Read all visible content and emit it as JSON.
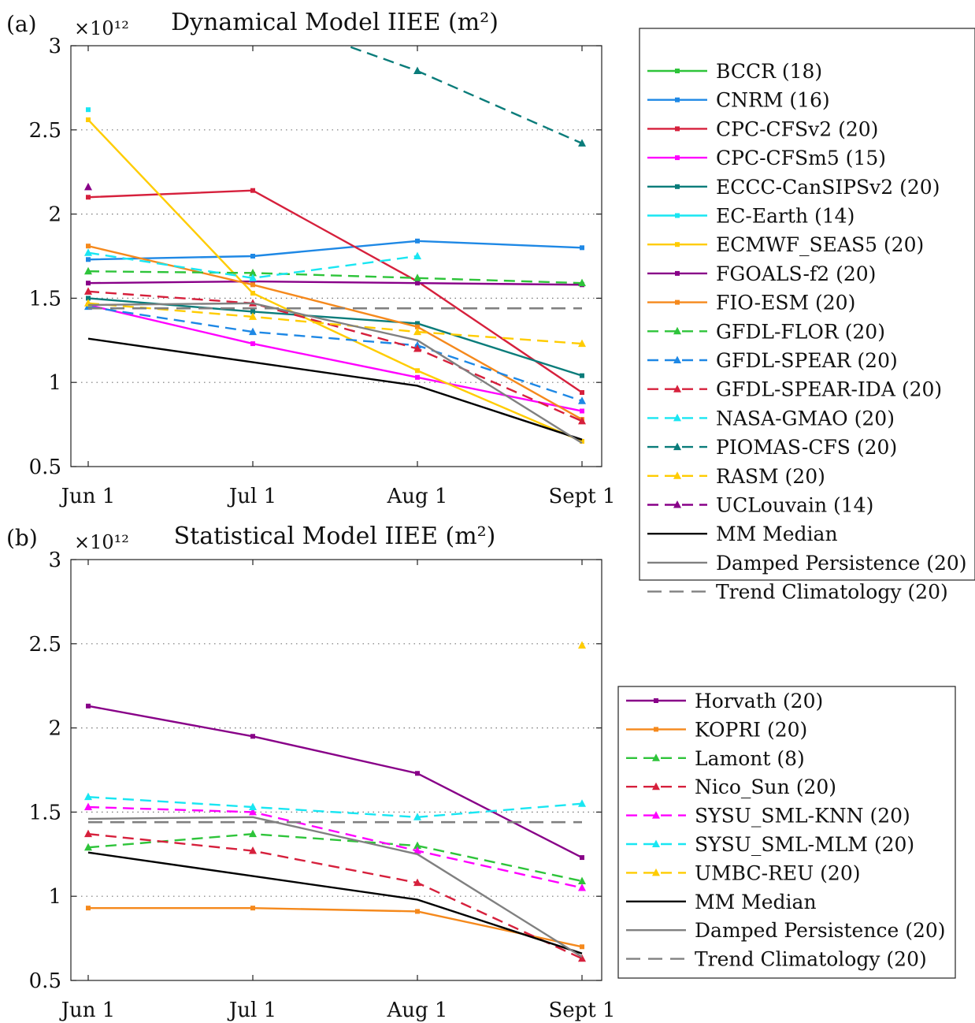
{
  "chart_data": [
    {
      "type": "line",
      "panel_label": "(a)",
      "title": "Dynamical Model IIEE (m²)",
      "exponent_label": "×10¹²",
      "x": [
        "Jun 1",
        "Jul 1",
        "Aug 1",
        "Sept 1"
      ],
      "ylim": [
        0.5,
        3.0
      ],
      "yticks": [
        "0.5",
        "1",
        "1.5",
        "2",
        "2.5",
        "3"
      ],
      "grid": "horizontal dotted",
      "legend_position": "right",
      "series": [
        {
          "name": "BCCR (18)",
          "values": [
            null,
            null,
            null,
            null
          ],
          "color": "#2ec43a",
          "dash": "solid",
          "marker": "square"
        },
        {
          "name": "CNRM (16)",
          "values": [
            1.73,
            1.75,
            1.84,
            1.8
          ],
          "color": "#1e88e5",
          "dash": "solid",
          "marker": "square"
        },
        {
          "name": "CPC-CFSv2 (20)",
          "values": [
            2.1,
            2.14,
            1.6,
            0.94
          ],
          "color": "#d6203c",
          "dash": "solid",
          "marker": "square"
        },
        {
          "name": "CPC-CFSm5 (15)",
          "values": [
            1.46,
            1.23,
            1.03,
            0.83
          ],
          "color": "#ff00ff",
          "dash": "solid",
          "marker": "square"
        },
        {
          "name": "ECCC-CanSIPSv2 (20)",
          "values": [
            1.5,
            1.42,
            1.35,
            1.04
          ],
          "color": "#0a7c7a",
          "dash": "solid",
          "marker": "square"
        },
        {
          "name": "EC-Earth (14)",
          "values": [
            2.62,
            null,
            null,
            null
          ],
          "color": "#19e6f2",
          "dash": "solid",
          "marker": "square"
        },
        {
          "name": "ECMWF_SEAS5 (20)",
          "values": [
            2.56,
            1.53,
            1.07,
            0.65
          ],
          "color": "#ffcc00",
          "dash": "solid",
          "marker": "square"
        },
        {
          "name": "FGOALS-f2 (20)",
          "values": [
            1.59,
            1.6,
            1.59,
            1.58
          ],
          "color": "#880088",
          "dash": "solid",
          "marker": "square"
        },
        {
          "name": "FIO-ESM (20)",
          "values": [
            1.81,
            1.58,
            1.33,
            0.78
          ],
          "color": "#f5891c",
          "dash": "solid",
          "marker": "square"
        },
        {
          "name": "GFDL-FLOR (20)",
          "values": [
            1.66,
            1.65,
            1.62,
            1.59
          ],
          "color": "#2ec43a",
          "dash": "dashed",
          "marker": "triangle"
        },
        {
          "name": "GFDL-SPEAR (20)",
          "values": [
            1.45,
            1.3,
            1.22,
            0.89
          ],
          "color": "#1e88e5",
          "dash": "dashed",
          "marker": "triangle"
        },
        {
          "name": "GFDL-SPEAR-IDA (20)",
          "values": [
            1.54,
            1.47,
            1.2,
            0.77
          ],
          "color": "#d6203c",
          "dash": "dashed",
          "marker": "triangle"
        },
        {
          "name": "NASA-GMAO (20)",
          "values": [
            1.77,
            1.62,
            1.75,
            null
          ],
          "color": "#19e6f2",
          "dash": "dashed",
          "marker": "triangle"
        },
        {
          "name": "PIOMAS-CFS (20)",
          "values": [
            null,
            3.2,
            2.85,
            2.42
          ],
          "color": "#0a7c7a",
          "dash": "dashed",
          "marker": "triangle"
        },
        {
          "name": "RASM (20)",
          "values": [
            1.47,
            1.39,
            1.3,
            1.23
          ],
          "color": "#ffcc00",
          "dash": "dashed",
          "marker": "triangle"
        },
        {
          "name": "UCLouvain (14)",
          "values": [
            2.16,
            null,
            null,
            null
          ],
          "color": "#880088",
          "dash": "dashed",
          "marker": "triangle"
        },
        {
          "name": "MM Median",
          "values": [
            1.26,
            1.12,
            0.98,
            0.66
          ],
          "color": "#000000",
          "dash": "solid",
          "marker": "none"
        },
        {
          "name": "Damped Persistence (20)",
          "values": [
            1.46,
            1.47,
            1.25,
            0.64
          ],
          "color": "#808080",
          "dash": "solid",
          "marker": "none"
        },
        {
          "name": "Trend Climatology (20)",
          "values": [
            1.44,
            1.44,
            1.44,
            1.44
          ],
          "color": "#808080",
          "dash": "longdash",
          "marker": "none"
        }
      ]
    },
    {
      "type": "line",
      "panel_label": "(b)",
      "title": "Statistical Model IIEE (m²)",
      "exponent_label": "×10¹²",
      "x": [
        "Jun 1",
        "Jul 1",
        "Aug 1",
        "Sept 1"
      ],
      "ylim": [
        0.5,
        3.0
      ],
      "yticks": [
        "0.5",
        "1",
        "1.5",
        "2",
        "2.5",
        "3"
      ],
      "grid": "horizontal dotted",
      "legend_position": "right",
      "series": [
        {
          "name": "Horvath (20)",
          "values": [
            2.13,
            1.95,
            1.73,
            1.23
          ],
          "color": "#880088",
          "dash": "solid",
          "marker": "square"
        },
        {
          "name": "KOPRI (20)",
          "values": [
            0.93,
            0.93,
            0.91,
            0.7
          ],
          "color": "#f5891c",
          "dash": "solid",
          "marker": "square"
        },
        {
          "name": "Lamont (8)",
          "values": [
            1.29,
            1.37,
            1.3,
            1.09
          ],
          "color": "#2ec43a",
          "dash": "dashed",
          "marker": "triangle"
        },
        {
          "name": "Nico_Sun (20)",
          "values": [
            1.37,
            1.27,
            1.08,
            0.63
          ],
          "color": "#d6203c",
          "dash": "dashed",
          "marker": "triangle"
        },
        {
          "name": "SYSU_SML-KNN (20)",
          "values": [
            1.53,
            1.5,
            1.27,
            1.05
          ],
          "color": "#ff00ff",
          "dash": "dashed",
          "marker": "triangle"
        },
        {
          "name": "SYSU_SML-MLM (20)",
          "values": [
            1.59,
            1.53,
            1.47,
            1.55
          ],
          "color": "#19e6f2",
          "dash": "dashed",
          "marker": "triangle"
        },
        {
          "name": "UMBC-REU (20)",
          "values": [
            null,
            null,
            null,
            2.49
          ],
          "color": "#ffcc00",
          "dash": "dashed",
          "marker": "triangle"
        },
        {
          "name": "MM Median",
          "values": [
            1.26,
            1.12,
            0.98,
            0.66
          ],
          "color": "#000000",
          "dash": "solid",
          "marker": "none"
        },
        {
          "name": "Damped Persistence (20)",
          "values": [
            1.46,
            1.47,
            1.25,
            0.64
          ],
          "color": "#808080",
          "dash": "solid",
          "marker": "none"
        },
        {
          "name": "Trend Climatology (20)",
          "values": [
            1.44,
            1.44,
            1.44,
            1.44
          ],
          "color": "#808080",
          "dash": "longdash",
          "marker": "none"
        }
      ]
    }
  ]
}
